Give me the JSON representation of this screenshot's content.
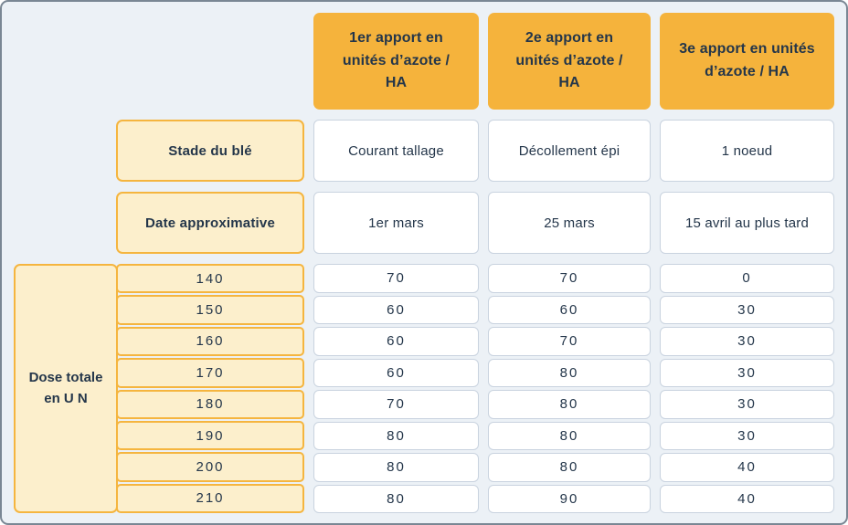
{
  "colors": {
    "amber_header": "#F5B33C",
    "cream_cell": "#FCEFCC",
    "orange_border": "#F5B53F",
    "white_cell_border": "#C9D3DF",
    "frame_border": "#7A8794",
    "background": "#ECF1F6",
    "text": "#24364A"
  },
  "chart_data": {
    "type": "table",
    "column_headers": [
      "1er apport en unités d’azote / HA",
      "2e apport en unités d’azote / HA",
      "3e apport en unités d’azote / HA"
    ],
    "info_rows": [
      {
        "label": "Stade du blé",
        "values": [
          "Courant tallage",
          "Décollement épi",
          "1 noeud"
        ]
      },
      {
        "label": "Date approximative",
        "values": [
          "1er mars",
          "25 mars",
          "15 avril au plus tard"
        ]
      }
    ],
    "row_group_label": "Dose totale en U N",
    "dose_rows": [
      {
        "dose": 140,
        "values": [
          70,
          70,
          0
        ]
      },
      {
        "dose": 150,
        "values": [
          60,
          60,
          30
        ]
      },
      {
        "dose": 160,
        "values": [
          60,
          70,
          30
        ]
      },
      {
        "dose": 170,
        "values": [
          60,
          80,
          30
        ]
      },
      {
        "dose": 180,
        "values": [
          70,
          80,
          30
        ]
      },
      {
        "dose": 190,
        "values": [
          80,
          80,
          30
        ]
      },
      {
        "dose": 200,
        "values": [
          80,
          80,
          40
        ]
      },
      {
        "dose": 210,
        "values": [
          80,
          90,
          40
        ]
      }
    ]
  }
}
